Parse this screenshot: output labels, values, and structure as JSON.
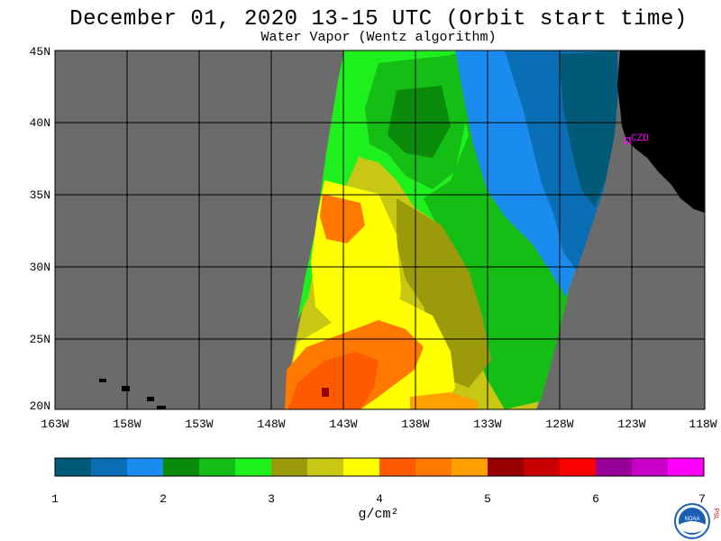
{
  "header": {
    "title": "December 01, 2020  13-15 UTC  (Orbit start time)",
    "subtitle": "Water Vapor (Wentz algorithm)"
  },
  "map": {
    "lat_labels": [
      "45N",
      "40N",
      "35N",
      "30N",
      "25N",
      "20N"
    ],
    "lon_labels": [
      "163W",
      "158W",
      "153W",
      "148W",
      "143W",
      "138W",
      "133W",
      "128W",
      "123W",
      "118W"
    ],
    "station_label": "CZD",
    "colors": {
      "no_data": "#6b6b6b",
      "land": "#000000",
      "grid": "#000000",
      "station": "#ff00ff"
    }
  },
  "colorbar": {
    "colors": [
      "#005a78",
      "#0a6eb4",
      "#1a8cf0",
      "#0a8c0a",
      "#14be14",
      "#1ef01e",
      "#9a9a0a",
      "#c8c814",
      "#ffff00",
      "#ff5a00",
      "#ff7800",
      "#ffa000",
      "#960000",
      "#c80000",
      "#ff0000",
      "#960096",
      "#c800c8",
      "#ff00ff"
    ],
    "tick_labels": [
      "1",
      "2",
      "3",
      "4",
      "5",
      "6",
      "7"
    ],
    "unit_label": "g/cm²"
  },
  "logo": {
    "text": "NOAA",
    "side_text": "PSL"
  }
}
